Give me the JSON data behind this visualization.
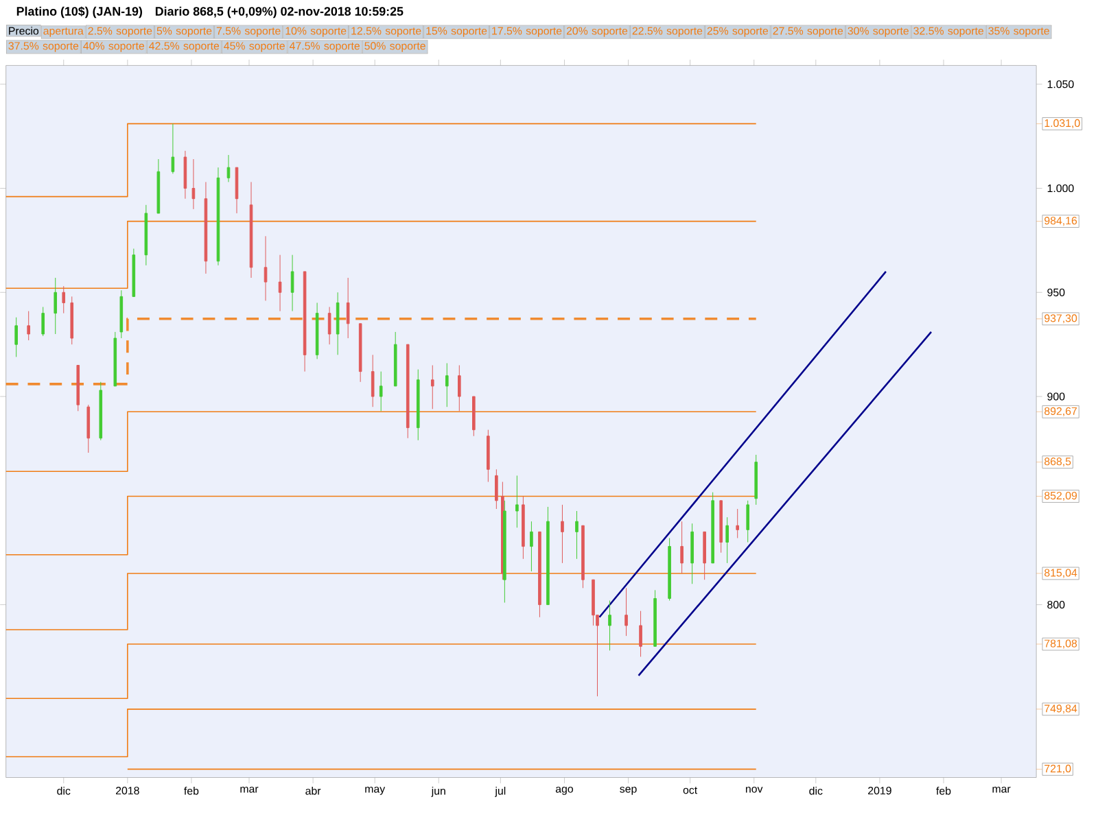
{
  "chart_data": {
    "type": "candlestick",
    "title": "Platino (10$) (JAN-19)",
    "subtitle": "Diario   868,5 (+0,09%)   02-nov-2018 10:59:25",
    "x": [
      "2017-11-08",
      "2017-11-14",
      "2017-11-21",
      "2017-11-27",
      "2017-12-01",
      "2017-12-05",
      "2017-12-08",
      "2017-12-13",
      "2017-12-19",
      "2017-12-26",
      "2017-12-29",
      "2018-01-04",
      "2018-01-10",
      "2018-01-16",
      "2018-01-23",
      "2018-01-29",
      "2018-02-02",
      "2018-02-08",
      "2018-02-14",
      "2018-02-19",
      "2018-02-23",
      "2018-03-02",
      "2018-03-09",
      "2018-03-16",
      "2018-03-22",
      "2018-03-28",
      "2018-04-03",
      "2018-04-09",
      "2018-04-13",
      "2018-04-18",
      "2018-04-24",
      "2018-04-30",
      "2018-05-04",
      "2018-05-11",
      "2018-05-17",
      "2018-05-22",
      "2018-05-29",
      "2018-06-05",
      "2018-06-11",
      "2018-06-18",
      "2018-06-25",
      "2018-06-29",
      "2018-07-02",
      "2018-07-03",
      "2018-07-09",
      "2018-07-12",
      "2018-07-16",
      "2018-07-20",
      "2018-07-24",
      "2018-07-31",
      "2018-08-07",
      "2018-08-10",
      "2018-08-15",
      "2018-08-17",
      "2018-08-23",
      "2018-08-31",
      "2018-09-07",
      "2018-09-14",
      "2018-09-21",
      "2018-09-27",
      "2018-10-02",
      "2018-10-08",
      "2018-10-12",
      "2018-10-16",
      "2018-10-19",
      "2018-10-24",
      "2018-10-29",
      "2018-11-02"
    ],
    "ohlc": [
      [
        925,
        938,
        919,
        934
      ],
      [
        934,
        941,
        927,
        930
      ],
      [
        930,
        943,
        929,
        940
      ],
      [
        940,
        957,
        930,
        950
      ],
      [
        950,
        953,
        940,
        945
      ],
      [
        945,
        948,
        925,
        928
      ],
      [
        915,
        915,
        893,
        896
      ],
      [
        895,
        896,
        873,
        880
      ],
      [
        880,
        907,
        879,
        903
      ],
      [
        905,
        931,
        905,
        928
      ],
      [
        931,
        951,
        928,
        948
      ],
      [
        948,
        971,
        948,
        968
      ],
      [
        968,
        992,
        963,
        988
      ],
      [
        988,
        1014,
        988,
        1008
      ],
      [
        1008,
        1031,
        1007,
        1015
      ],
      [
        1015,
        1018,
        995,
        1000
      ],
      [
        1000,
        1014,
        990,
        995
      ],
      [
        995,
        1003,
        959,
        965
      ],
      [
        965,
        1010,
        963,
        1005
      ],
      [
        1005,
        1016,
        1003,
        1010
      ],
      [
        1010,
        1010,
        988,
        995
      ],
      [
        992,
        1003,
        957,
        962
      ],
      [
        962,
        977,
        946,
        955
      ],
      [
        955,
        968,
        941,
        950
      ],
      [
        950,
        968,
        941,
        960
      ],
      [
        960,
        960,
        912,
        920
      ],
      [
        920,
        945,
        918,
        940
      ],
      [
        940,
        943,
        925,
        930
      ],
      [
        930,
        950,
        920,
        945
      ],
      [
        945,
        957,
        928,
        935
      ],
      [
        935,
        935,
        907,
        912
      ],
      [
        912,
        920,
        895,
        900
      ],
      [
        900,
        912,
        893,
        905
      ],
      [
        905,
        931,
        905,
        925
      ],
      [
        925,
        925,
        880,
        885
      ],
      [
        885,
        913,
        879,
        908
      ],
      [
        908,
        915,
        894,
        905
      ],
      [
        905,
        916,
        895,
        910
      ],
      [
        910,
        915,
        893,
        900
      ],
      [
        900,
        900,
        881,
        884
      ],
      [
        881,
        884,
        859,
        865
      ],
      [
        862,
        865,
        846,
        850
      ],
      [
        852,
        859,
        812,
        815
      ],
      [
        812,
        850,
        801,
        845
      ],
      [
        845,
        862,
        837,
        848
      ],
      [
        848,
        852,
        822,
        828
      ],
      [
        828,
        840,
        816,
        835
      ],
      [
        835,
        835,
        794,
        800
      ],
      [
        800,
        847,
        800,
        840
      ],
      [
        840,
        848,
        820,
        835
      ],
      [
        835,
        845,
        822,
        840
      ],
      [
        838,
        838,
        808,
        812
      ],
      [
        812,
        812,
        790,
        795
      ],
      [
        795,
        795,
        756,
        790
      ],
      [
        790,
        802,
        778,
        795
      ],
      [
        795,
        808,
        785,
        790
      ],
      [
        790,
        797,
        775,
        780
      ],
      [
        780,
        807,
        780,
        803
      ],
      [
        803,
        832,
        802,
        828
      ],
      [
        828,
        840,
        815,
        820
      ],
      [
        820,
        839,
        810,
        835
      ],
      [
        835,
        835,
        812,
        820
      ],
      [
        820,
        854,
        820,
        850
      ],
      [
        850,
        850,
        825,
        830
      ],
      [
        830,
        842,
        820,
        838
      ],
      [
        838,
        846,
        832,
        836
      ],
      [
        836,
        850,
        830,
        848
      ],
      [
        851,
        872,
        848,
        868.5
      ]
    ],
    "series": [
      {
        "type": "step",
        "color": "#f07c14",
        "x": [
          "2017-11-03",
          "2018-01-01",
          "2018-11-02"
        ],
        "values": [
          996,
          1031.0,
          1031.0
        ]
      },
      {
        "type": "step",
        "color": "#f07c14",
        "x": [
          "2017-11-03",
          "2018-01-01",
          "2018-11-02"
        ],
        "values": [
          952,
          984.16,
          984.16
        ]
      },
      {
        "type": "step",
        "color": "#f08a30",
        "line_style": "dashed",
        "x": [
          "2017-11-03",
          "2018-01-01",
          "2018-11-02"
        ],
        "values": [
          906,
          937.3,
          937.3
        ]
      },
      {
        "type": "step",
        "color": "#f07c14",
        "x": [
          "2017-11-03",
          "2018-01-01",
          "2018-11-02"
        ],
        "values": [
          864,
          892.67,
          892.67
        ]
      },
      {
        "type": "step",
        "color": "#f07c14",
        "x": [
          "2017-11-03",
          "2018-01-01",
          "2018-11-02"
        ],
        "values": [
          824,
          852.09,
          852.09
        ]
      },
      {
        "type": "step",
        "color": "#f07c14",
        "x": [
          "2017-11-03",
          "2018-01-01",
          "2018-11-02"
        ],
        "values": [
          788,
          815.04,
          815.04
        ]
      },
      {
        "type": "step",
        "color": "#f07c14",
        "x": [
          "2017-11-03",
          "2018-01-01",
          "2018-11-02"
        ],
        "values": [
          755,
          781.08,
          781.08
        ]
      },
      {
        "type": "step",
        "color": "#f07c14",
        "x": [
          "2017-11-03",
          "2018-01-01",
          "2018-11-02"
        ],
        "values": [
          727,
          749.84,
          749.84
        ]
      },
      {
        "type": "step",
        "color": "#f07c14",
        "x": [
          "2018-01-01",
          "2018-11-02"
        ],
        "values": [
          721.0,
          721.0
        ]
      },
      {
        "type": "line",
        "color": "#00008c",
        "x": [
          "2018-08-18",
          "2019-01-04"
        ],
        "values": [
          794,
          960
        ]
      },
      {
        "type": "line",
        "color": "#00008c",
        "x": [
          "2018-09-06",
          "2019-01-26"
        ],
        "values": [
          766,
          931
        ]
      }
    ],
    "xlim": [
      "2017-11-03",
      "2019-03-18"
    ],
    "ylim": [
      717,
      1059
    ],
    "xticks": [
      {
        "value": "2017-12-01",
        "label": "dic"
      },
      {
        "value": "2018-01-01",
        "label": "2018"
      },
      {
        "value": "2018-02-01",
        "label": "feb"
      },
      {
        "value": "2018-03-01",
        "label": "mar"
      },
      {
        "value": "2018-04-01",
        "label": "abr"
      },
      {
        "value": "2018-05-01",
        "label": "may"
      },
      {
        "value": "2018-06-01",
        "label": "jun"
      },
      {
        "value": "2018-07-01",
        "label": "jul"
      },
      {
        "value": "2018-08-01",
        "label": "ago"
      },
      {
        "value": "2018-09-01",
        "label": "sep"
      },
      {
        "value": "2018-10-01",
        "label": "oct"
      },
      {
        "value": "2018-11-01",
        "label": "nov"
      },
      {
        "value": "2018-12-01",
        "label": "dic"
      },
      {
        "value": "2019-01-01",
        "label": "2019"
      },
      {
        "value": "2019-02-01",
        "label": "feb"
      },
      {
        "value": "2019-03-01",
        "label": "mar"
      }
    ],
    "yticks": [
      {
        "value": 1050,
        "label": "1.050"
      },
      {
        "value": 1000,
        "label": "1.000"
      },
      950,
      900,
      800
    ],
    "annotations": [
      "Precio",
      "apertura",
      "2.5% soporte",
      "5% soporte",
      "7.5% soporte",
      "10% soporte",
      "12.5% soporte",
      "15% soporte",
      "17.5% soporte",
      "20% soporte",
      "22.5% soporte",
      "25% soporte",
      "27.5% soporte",
      "30% soporte",
      "32.5% soporte",
      "35% soporte",
      "37.5% soporte",
      "40% soporte",
      "42.5% soporte",
      "45% soporte",
      "47.5% soporte",
      "50% soporte"
    ],
    "y2lim": [
      717,
      1059
    ],
    "y2ticks": [
      {
        "value": 1031.0,
        "label": "1.031,0"
      },
      {
        "value": 984.16,
        "label": "984,16"
      },
      {
        "value": 937.3,
        "label": "937,30"
      },
      {
        "value": 892.67,
        "label": "892,67"
      },
      {
        "value": 868.5,
        "label": "868,5"
      },
      {
        "value": 852.09,
        "label": "852,09"
      },
      {
        "value": 815.04,
        "label": "815,04"
      },
      {
        "value": 781.08,
        "label": "781,08"
      },
      {
        "value": 749.84,
        "label": "749,84"
      },
      {
        "value": 721.0,
        "label": "721,0"
      }
    ]
  }
}
